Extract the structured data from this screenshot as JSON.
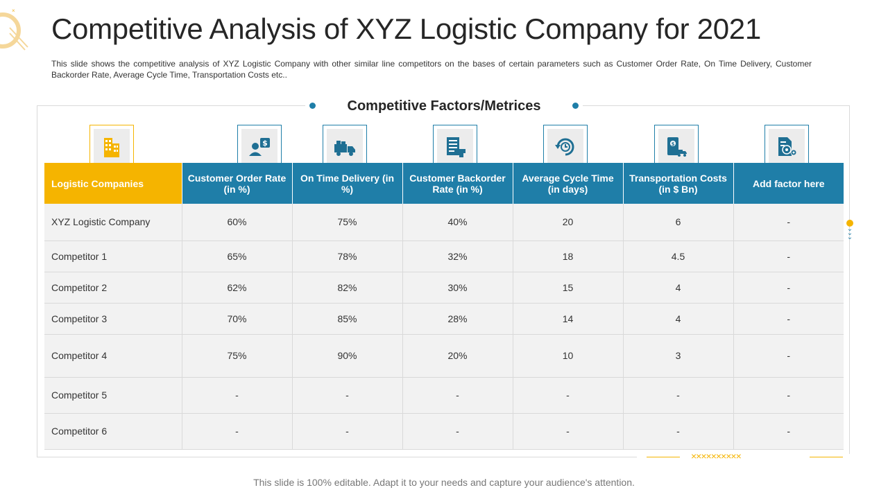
{
  "title": "Competitive Analysis of XYZ Logistic Company for 2021",
  "subtitle": "This slide shows the competitive analysis of XYZ Logistic Company with other similar line competitors on the bases of certain parameters such as Customer Order Rate, On Time Delivery, Customer Backorder Rate, Average Cycle Time, Transportation Costs etc..",
  "section_heading": "Competitive Factors/Metrices",
  "columns": [
    {
      "label": "Logistic Companies",
      "icon": "buildings-icon"
    },
    {
      "label": "Customer Order Rate (in %)",
      "icon": "customer-dollar-icon"
    },
    {
      "label": "On Time Delivery (in %)",
      "icon": "delivery-truck-icon"
    },
    {
      "label": "Customer Backorder Rate (in %)",
      "icon": "backorder-list-icon"
    },
    {
      "label": "Average Cycle Time (in days)",
      "icon": "cycle-clock-icon"
    },
    {
      "label": "Transportation Costs (in $ Bn)",
      "icon": "transport-cost-icon"
    },
    {
      "label": "Add factor here",
      "icon": "settings-document-icon"
    }
  ],
  "rows": [
    {
      "name": "XYZ  Logistic Company",
      "values": [
        "60%",
        "75%",
        "40%",
        "20",
        "6",
        "-"
      ]
    },
    {
      "name": "Competitor 1",
      "values": [
        "65%",
        "78%",
        "32%",
        "18",
        "4.5",
        "-"
      ]
    },
    {
      "name": "Competitor 2",
      "values": [
        "62%",
        "82%",
        "30%",
        "15",
        "4",
        "-"
      ]
    },
    {
      "name": "Competitor 3",
      "values": [
        "70%",
        "85%",
        "28%",
        "14",
        "4",
        "-"
      ]
    },
    {
      "name": "Competitor 4",
      "values": [
        "75%",
        "90%",
        "20%",
        "10",
        "3",
        "-"
      ]
    },
    {
      "name": "Competitor 5",
      "values": [
        "-",
        "-",
        "-",
        "-",
        "-",
        "-"
      ]
    },
    {
      "name": "Competitor 6",
      "values": [
        "-",
        "-",
        "-",
        "-",
        "-",
        "-"
      ]
    }
  ],
  "footer": "This slide is 100% editable. Adapt it to your needs and capture your audience's attention.",
  "colors": {
    "accent_gold": "#f5b400",
    "accent_blue": "#1f7ea8",
    "cell_bg": "#f2f2f2"
  }
}
